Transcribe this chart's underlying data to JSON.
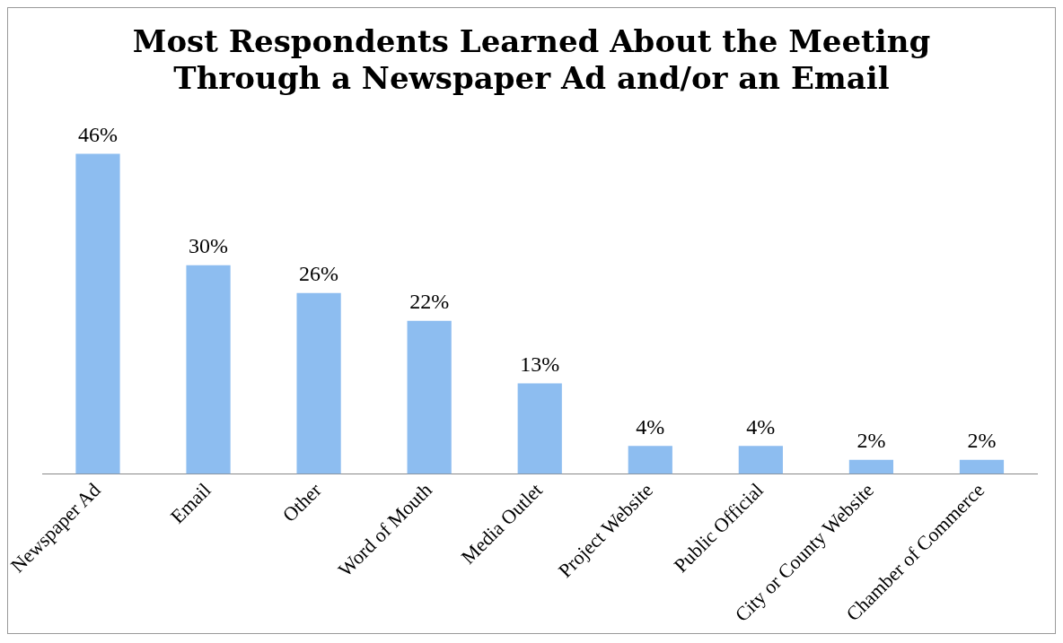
{
  "chart_data": {
    "type": "bar",
    "title": [
      "Most Respondents Learned About the Meeting",
      "Through a Newspaper Ad and/or an Email"
    ],
    "categories": [
      "Newspaper Ad",
      "Email",
      "Other",
      "Word of Mouth",
      "Media Outlet",
      "Project Website",
      "Public Official",
      "City or County Website",
      "Chamber of Commerce"
    ],
    "values": [
      46,
      30,
      26,
      22,
      13,
      4,
      4,
      2,
      2
    ],
    "value_labels": [
      "46%",
      "30%",
      "26%",
      "22%",
      "13%",
      "4%",
      "4%",
      "2%",
      "2%"
    ],
    "color": "#8dbdf0",
    "grid": false,
    "legend": false,
    "tick_labels": "x"
  }
}
